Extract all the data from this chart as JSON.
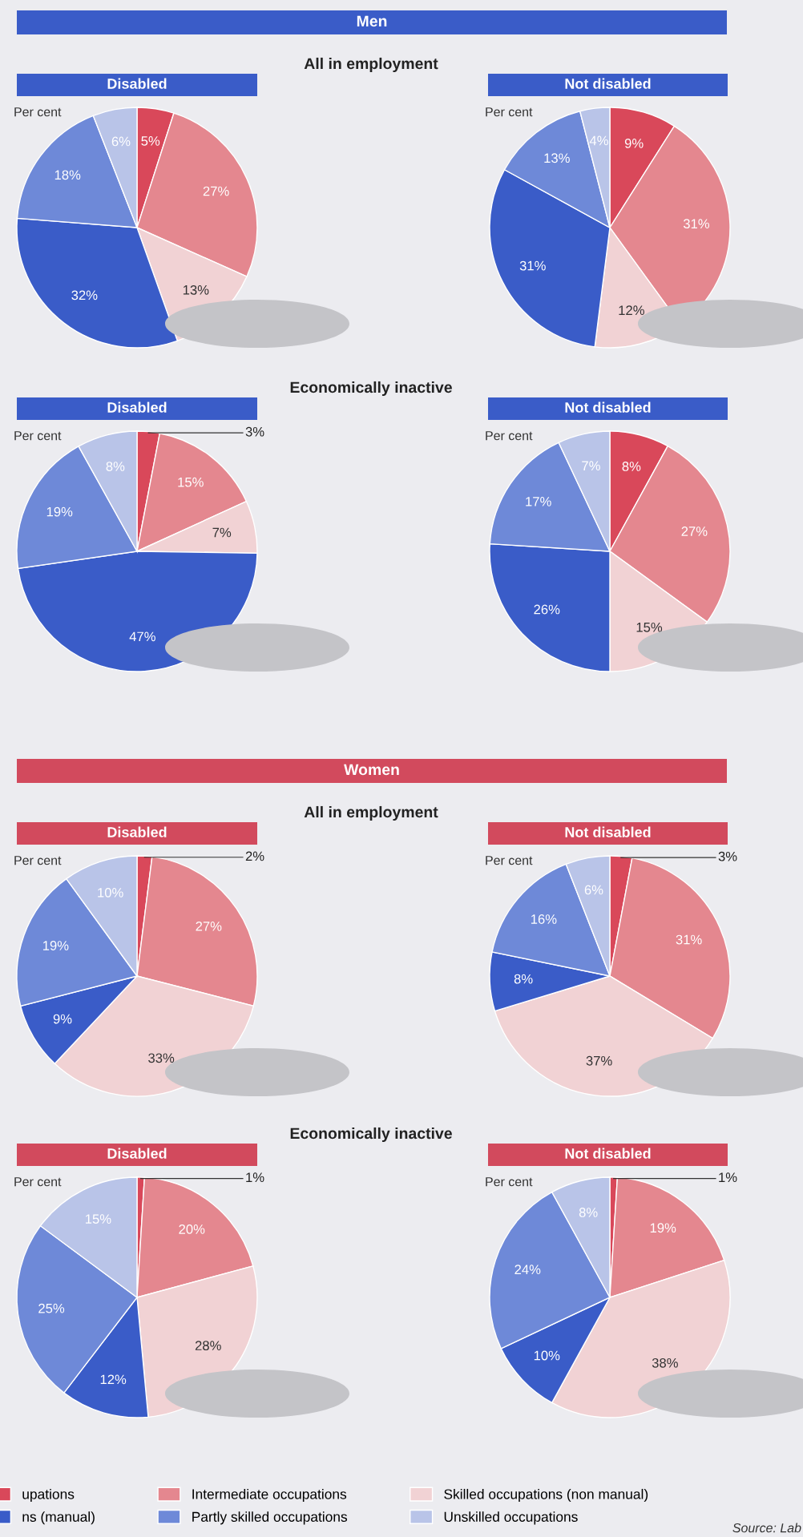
{
  "chart_data": [
    {
      "type": "pie",
      "title": "Disabled",
      "subtitle": "Per cent",
      "annotations": [
        "Men",
        "All in employment"
      ],
      "legend": "bottom",
      "categories": [
        "upations",
        "Intermediate occupations",
        "Skilled occupations (non manual)",
        "ns (manual)",
        "Partly skilled occupations",
        "Unskilled occupations"
      ],
      "values": [
        5,
        27,
        13,
        32,
        18,
        6
      ],
      "colors": [
        "#d9485a",
        "#e4878f",
        "#f1d2d4",
        "#3a5cc8",
        "#6e89d8",
        "#b9c4e8"
      ],
      "value_labels": [
        "5%",
        "27%",
        "13%",
        "32%",
        "18%",
        "6%"
      ]
    },
    {
      "type": "pie",
      "title": "Not disabled",
      "subtitle": "Per cent",
      "categories": [
        null,
        null,
        null,
        null,
        null,
        null
      ],
      "values": [
        9,
        31,
        12,
        31,
        13,
        4
      ],
      "colors": [
        "#d9485a",
        "#e4878f",
        "#f1d2d4",
        "#3a5cc8",
        "#6e89d8",
        "#b9c4e8"
      ],
      "value_labels": [
        "9%",
        "31%",
        "12%",
        "31%",
        "13%",
        "4%"
      ]
    },
    {
      "type": "pie",
      "title": "Disabled",
      "subtitle": "Per cent",
      "annotations": [
        "Economically inactive"
      ],
      "categories": [
        null,
        null,
        null,
        null,
        null,
        null
      ],
      "values": [
        3,
        15,
        7,
        47,
        19,
        8
      ],
      "colors": [
        "#d9485a",
        "#e4878f",
        "#f1d2d4",
        "#3a5cc8",
        "#6e89d8",
        "#b9c4e8"
      ],
      "value_labels": [
        "3%",
        "15%",
        "7%",
        "47%",
        "19%",
        "8%"
      ]
    },
    {
      "type": "pie",
      "title": "Not disabled",
      "subtitle": "Per cent",
      "categories": [
        null,
        null,
        null,
        null,
        null,
        null
      ],
      "values": [
        8,
        27,
        15,
        26,
        17,
        7
      ],
      "colors": [
        "#d9485a",
        "#e4878f",
        "#f1d2d4",
        "#3a5cc8",
        "#6e89d8",
        "#b9c4e8"
      ],
      "value_labels": [
        "8%",
        "27%",
        "15%",
        "26%",
        "17%",
        "7%"
      ]
    },
    {
      "type": "pie",
      "title": "Disabled",
      "subtitle": "Per cent",
      "annotations": [
        "Women",
        "All in employment"
      ],
      "categories": [
        null,
        null,
        null,
        null,
        null,
        null
      ],
      "values": [
        2,
        27,
        33,
        9,
        19,
        10
      ],
      "colors": [
        "#d9485a",
        "#e4878f",
        "#f1d2d4",
        "#3a5cc8",
        "#6e89d8",
        "#b9c4e8"
      ],
      "value_labels": [
        "2%",
        "27%",
        "33%",
        "9%",
        "19%",
        "10%"
      ]
    },
    {
      "type": "pie",
      "title": "Not disabled",
      "subtitle": "Per cent",
      "categories": [
        null,
        null,
        null,
        null,
        null,
        null
      ],
      "values": [
        3,
        31,
        37,
        8,
        16,
        6
      ],
      "colors": [
        "#d9485a",
        "#e4878f",
        "#f1d2d4",
        "#3a5cc8",
        "#6e89d8",
        "#b9c4e8"
      ],
      "value_labels": [
        "3%",
        "31%",
        "37%",
        "8%",
        "16%",
        "6%"
      ]
    },
    {
      "type": "pie",
      "title": "Disabled",
      "subtitle": "Per cent",
      "annotations": [
        "Economically inactive"
      ],
      "categories": [
        null,
        null,
        null,
        null,
        null,
        null
      ],
      "values": [
        1,
        20,
        28,
        12,
        25,
        15
      ],
      "colors": [
        "#d9485a",
        "#e4878f",
        "#f1d2d4",
        "#3a5cc8",
        "#6e89d8",
        "#b9c4e8"
      ],
      "value_labels": [
        "1%",
        "20%",
        "28%",
        "12%",
        "25%",
        "15%"
      ]
    },
    {
      "type": "pie",
      "title": "Not disabled",
      "subtitle": "Per cent",
      "annotations": [
        "Source: Lab"
      ],
      "categories": [
        null,
        null,
        null,
        null,
        null,
        null
      ],
      "values": [
        1,
        19,
        38,
        10,
        24,
        8
      ],
      "colors": [
        "#d9485a",
        "#e4878f",
        "#f1d2d4",
        "#3a5cc8",
        "#6e89d8",
        "#b9c4e8"
      ],
      "value_labels": [
        "1%",
        "19%",
        "38%",
        "10%",
        "24%",
        "8%"
      ]
    }
  ]
}
